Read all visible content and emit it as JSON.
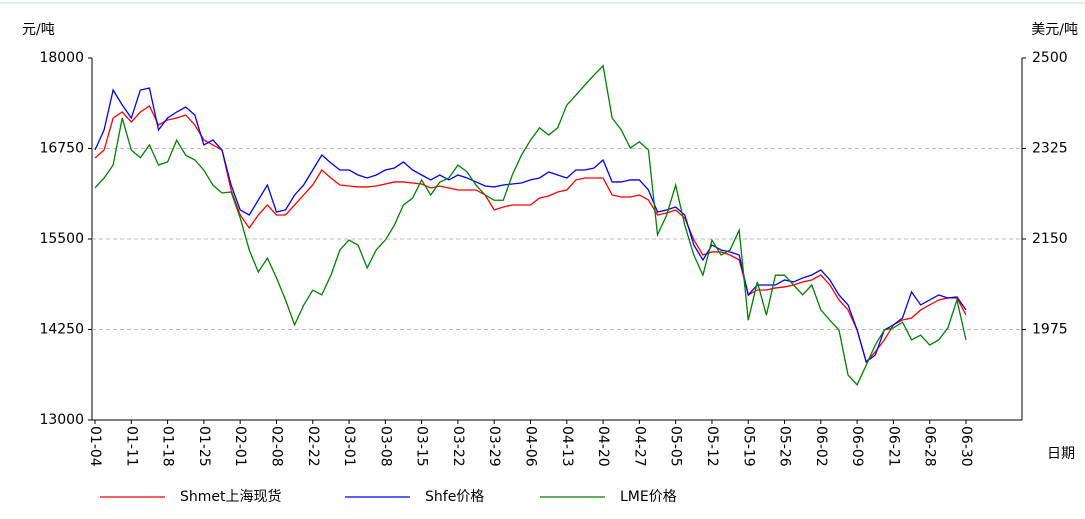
{
  "chart_data": {
    "type": "line",
    "y_label": "元/吨",
    "y2_label": "美元/吨",
    "x_label": "日期",
    "categories": [
      "01-04",
      null,
      null,
      null,
      "01-11",
      null,
      null,
      null,
      "01-18",
      null,
      null,
      null,
      "01-25",
      null,
      null,
      null,
      "02-01",
      null,
      null,
      null,
      "02-08",
      null,
      null,
      null,
      "02-22",
      null,
      null,
      null,
      "03-01",
      null,
      null,
      null,
      "03-08",
      null,
      null,
      null,
      "03-15",
      null,
      null,
      null,
      "03-22",
      null,
      null,
      null,
      "03-29",
      null,
      null,
      null,
      "04-06",
      null,
      null,
      null,
      "04-13",
      null,
      null,
      null,
      "04-20",
      null,
      null,
      null,
      "04-27",
      null,
      null,
      null,
      "05-05",
      null,
      null,
      null,
      "05-12",
      null,
      null,
      null,
      "05-19",
      null,
      null,
      null,
      "05-26",
      null,
      null,
      null,
      "06-02",
      null,
      null,
      null,
      "06-09",
      null,
      null,
      null,
      "06-21",
      null,
      null,
      null,
      "06-28",
      null,
      null,
      null,
      "06-30"
    ],
    "ylim": [
      13000,
      18000
    ],
    "yticks": [
      13000,
      14250,
      15500,
      16750,
      18000
    ],
    "y2lim": [
      1800,
      2500
    ],
    "y2ticks": [
      1975,
      2150,
      2325,
      2500
    ],
    "grid": true,
    "legend": "bottom",
    "series": [
      {
        "name": "Shmet上海现货",
        "color": "#ff0000",
        "values": [
          16619,
          16729,
          17171,
          17254,
          17116,
          17254,
          17337,
          17075,
          17144,
          17171,
          17213,
          17075,
          16868,
          16799,
          16729,
          16177,
          15832,
          15652,
          15832,
          15970,
          15832,
          15832,
          15970,
          16108,
          16246,
          16453,
          16343,
          16246,
          16232,
          16219,
          16219,
          16232,
          16260,
          16288,
          16288,
          16274,
          16260,
          16205,
          16232,
          16205,
          16177,
          16177,
          16177,
          16108,
          15901,
          15942,
          15970,
          15970,
          15970,
          16067,
          16094,
          16149,
          16177,
          16316,
          16343,
          16343,
          16343,
          16108,
          16080,
          16080,
          16108,
          16039,
          15832,
          15859,
          15901,
          15790,
          15487,
          15279,
          15321,
          15321,
          15279,
          15210,
          14727,
          14796,
          14796,
          14824,
          14838,
          14865,
          14907,
          14934,
          15003,
          14865,
          14658,
          14520,
          14244,
          13802,
          13940,
          14106,
          14313,
          14382,
          14409,
          14520,
          14589,
          14658,
          14686,
          14686,
          14451
        ]
      },
      {
        "name": "Shfe价格",
        "color": "#0000ff",
        "values": [
          16729,
          17006,
          17558,
          17351,
          17171,
          17558,
          17586,
          17006,
          17171,
          17254,
          17323,
          17213,
          16799,
          16868,
          16729,
          16246,
          15901,
          15832,
          16039,
          16246,
          15873,
          15901,
          16108,
          16246,
          16453,
          16660,
          16550,
          16453,
          16453,
          16384,
          16343,
          16384,
          16453,
          16481,
          16564,
          16453,
          16384,
          16316,
          16384,
          16316,
          16384,
          16343,
          16288,
          16232,
          16219,
          16246,
          16260,
          16274,
          16316,
          16343,
          16426,
          16384,
          16343,
          16453,
          16453,
          16481,
          16591,
          16288,
          16288,
          16316,
          16316,
          16177,
          15873,
          15901,
          15942,
          15832,
          15418,
          15210,
          15418,
          15348,
          15321,
          15279,
          14727,
          14865,
          14865,
          14865,
          14934,
          14907,
          14962,
          15003,
          15072,
          14934,
          14727,
          14589,
          14244,
          13802,
          13898,
          14244,
          14313,
          14409,
          14769,
          14589,
          14658,
          14727,
          14686,
          14699,
          14520
        ]
      },
      {
        "name": "LME价格",
        "color": "#008000",
        "axis": "y2",
        "values": [
          2249,
          2268,
          2293,
          2384,
          2322,
          2307,
          2332,
          2293,
          2299,
          2341,
          2312,
          2303,
          2283,
          2254,
          2239,
          2241,
          2191,
          2129,
          2086,
          2113,
          2075,
          2032,
          1984,
          2022,
          2051,
          2042,
          2080,
          2129,
          2148,
          2138,
          2094,
          2129,
          2148,
          2177,
          2216,
          2229,
          2264,
          2235,
          2260,
          2268,
          2293,
          2280,
          2254,
          2235,
          2225,
          2225,
          2274,
          2312,
          2341,
          2365,
          2351,
          2365,
          2409,
          2428,
          2448,
          2467,
          2485,
          2384,
          2361,
          2326,
          2338,
          2322,
          2158,
          2196,
          2254,
          2177,
          2119,
          2080,
          2148,
          2119,
          2129,
          2167,
          1993,
          2067,
          2003,
          2080,
          2080,
          2061,
          2042,
          2061,
          2013,
          1993,
          1974,
          1887,
          1868,
          1906,
          1945,
          1974,
          1978,
          1989,
          1955,
          1964,
          1945,
          1955,
          1978,
          2032,
          1955
        ]
      }
    ]
  }
}
